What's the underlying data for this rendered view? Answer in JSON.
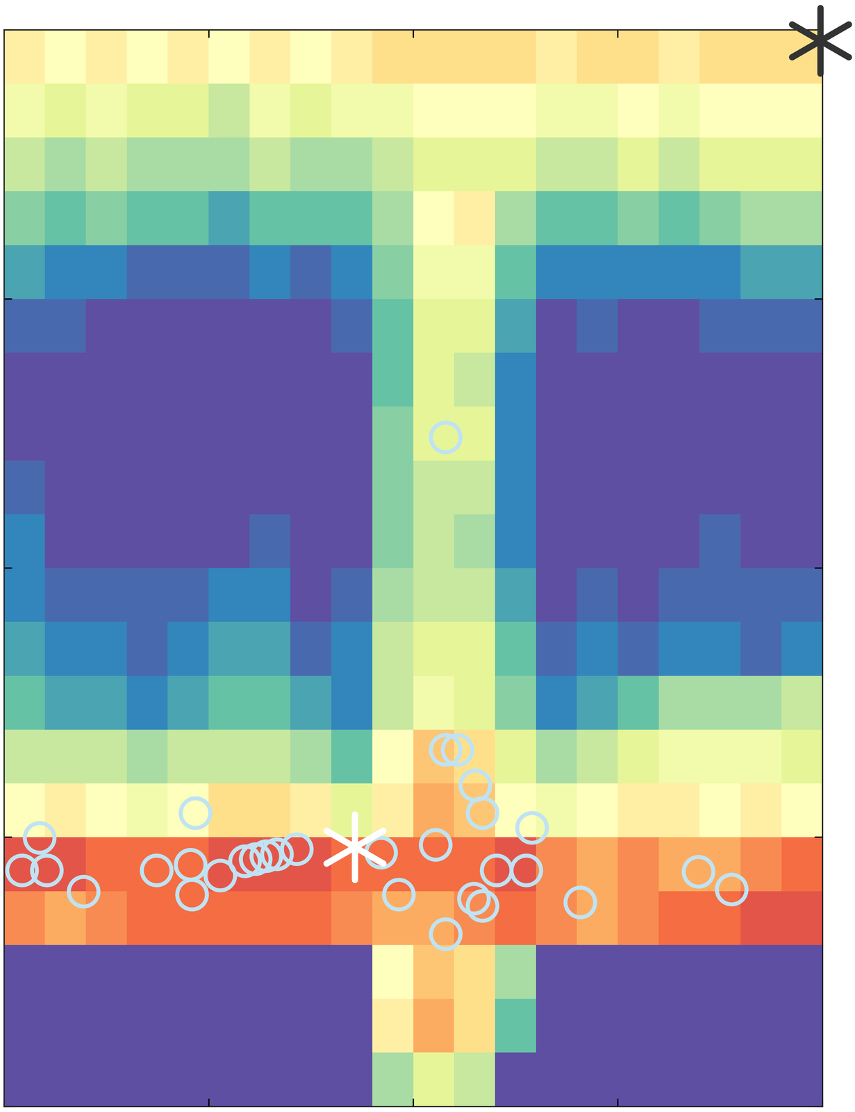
{
  "chart_data": {
    "type": "heatmap",
    "xlim": [
      0,
      4
    ],
    "ylim": [
      0,
      4
    ],
    "xticks": [
      0,
      1,
      2,
      3,
      4
    ],
    "yticks": [
      0,
      1,
      2,
      3,
      4
    ],
    "tick_labels": false,
    "color_range": [
      0,
      1
    ],
    "cells": [
      [
        0.55,
        0.5,
        0.55,
        0.5,
        0.55,
        0.5,
        0.55,
        0.5,
        0.55,
        0.6,
        0.6,
        0.6,
        0.6,
        0.55,
        0.6,
        0.6,
        0.55,
        0.6,
        0.6,
        0.6
      ],
      [
        0.45,
        0.4,
        0.45,
        0.4,
        0.4,
        0.35,
        0.45,
        0.4,
        0.45,
        0.45,
        0.5,
        0.5,
        0.5,
        0.45,
        0.45,
        0.5,
        0.45,
        0.5,
        0.5,
        0.5
      ],
      [
        0.35,
        0.3,
        0.35,
        0.3,
        0.3,
        0.3,
        0.35,
        0.3,
        0.3,
        0.35,
        0.4,
        0.4,
        0.4,
        0.35,
        0.35,
        0.4,
        0.35,
        0.4,
        0.4,
        0.4
      ],
      [
        0.25,
        0.2,
        0.25,
        0.2,
        0.2,
        0.15,
        0.2,
        0.2,
        0.2,
        0.3,
        0.5,
        0.55,
        0.3,
        0.2,
        0.2,
        0.25,
        0.2,
        0.25,
        0.3,
        0.3
      ],
      [
        0.15,
        0.1,
        0.1,
        0.05,
        0.05,
        0.05,
        0.1,
        0.05,
        0.1,
        0.25,
        0.45,
        0.45,
        0.2,
        0.1,
        0.1,
        0.1,
        0.1,
        0.1,
        0.15,
        0.15
      ],
      [
        0.05,
        0.05,
        0,
        0,
        0,
        0,
        0,
        0,
        0.05,
        0.2,
        0.4,
        0.4,
        0.15,
        0,
        0.05,
        0,
        0,
        0.05,
        0.05,
        0.05
      ],
      [
        0,
        0,
        0,
        0,
        0,
        0,
        0,
        0,
        0,
        0.2,
        0.4,
        0.35,
        0.1,
        0,
        0,
        0,
        0,
        0,
        0,
        0
      ],
      [
        0,
        0,
        0,
        0,
        0,
        0,
        0,
        0,
        0,
        0.25,
        0.4,
        0.4,
        0.1,
        0,
        0,
        0,
        0,
        0,
        0,
        0
      ],
      [
        0.05,
        0,
        0,
        0,
        0,
        0,
        0,
        0,
        0,
        0.25,
        0.35,
        0.35,
        0.1,
        0,
        0,
        0,
        0,
        0,
        0,
        0
      ],
      [
        0.1,
        0,
        0,
        0,
        0,
        0,
        0.05,
        0,
        0,
        0.25,
        0.35,
        0.3,
        0.1,
        0,
        0,
        0,
        0,
        0.05,
        0,
        0
      ],
      [
        0.1,
        0.05,
        0.05,
        0.05,
        0.05,
        0.1,
        0.1,
        0,
        0.05,
        0.3,
        0.35,
        0.35,
        0.15,
        0,
        0.05,
        0,
        0.05,
        0.05,
        0.05,
        0.05
      ],
      [
        0.15,
        0.1,
        0.1,
        0.05,
        0.1,
        0.15,
        0.15,
        0.05,
        0.1,
        0.35,
        0.4,
        0.4,
        0.2,
        0.05,
        0.1,
        0.05,
        0.1,
        0.1,
        0.05,
        0.1
      ],
      [
        0.2,
        0.15,
        0.15,
        0.1,
        0.15,
        0.2,
        0.2,
        0.15,
        0.1,
        0.35,
        0.45,
        0.4,
        0.25,
        0.1,
        0.15,
        0.2,
        0.3,
        0.3,
        0.3,
        0.35
      ],
      [
        0.35,
        0.35,
        0.35,
        0.3,
        0.35,
        0.35,
        0.35,
        0.3,
        0.2,
        0.5,
        0.65,
        0.6,
        0.4,
        0.3,
        0.35,
        0.4,
        0.45,
        0.45,
        0.45,
        0.4
      ],
      [
        0.5,
        0.55,
        0.5,
        0.45,
        0.5,
        0.6,
        0.6,
        0.55,
        0.4,
        0.55,
        0.7,
        0.65,
        0.5,
        0.45,
        0.5,
        0.55,
        0.55,
        0.5,
        0.55,
        0.5
      ],
      [
        0.85,
        0.85,
        0.8,
        0.8,
        0.8,
        0.85,
        0.85,
        0.85,
        0.8,
        0.8,
        0.8,
        0.8,
        0.85,
        0.75,
        0.7,
        0.75,
        0.7,
        0.7,
        0.75,
        0.8
      ],
      [
        0.75,
        0.7,
        0.75,
        0.8,
        0.8,
        0.8,
        0.8,
        0.8,
        0.75,
        0.7,
        0.7,
        0.75,
        0.8,
        0.75,
        0.7,
        0.75,
        0.8,
        0.8,
        0.85,
        0.85
      ],
      [
        0,
        0,
        0,
        0,
        0,
        0,
        0,
        0,
        0,
        0.5,
        0.65,
        0.6,
        0.3,
        0,
        0,
        0,
        0,
        0,
        0,
        0
      ],
      [
        0,
        0,
        0,
        0,
        0,
        0,
        0,
        0,
        0,
        0.55,
        0.7,
        0.6,
        0.2,
        0,
        0,
        0,
        0,
        0,
        0,
        0
      ],
      [
        0,
        0,
        0,
        0,
        0,
        0,
        0,
        0,
        0,
        0.3,
        0.4,
        0.35,
        0,
        0,
        0,
        0,
        0,
        0,
        0,
        0
      ]
    ],
    "series": [
      {
        "type": "scatter",
        "marker": "circle",
        "color": "#bfe3f3",
        "x": [
          2.158,
          2.158,
          2.216,
          2.303,
          2.338,
          2.58,
          2.109,
          0.935,
          0.173,
          0.087,
          0.208,
          0.388,
          0.745,
          0.911,
          0.918,
          1.056,
          1.177,
          1.229,
          1.281,
          1.333,
          1.43,
          1.842,
          1.929,
          2.158,
          2.296,
          2.338,
          2.407,
          2.552,
          2.816,
          3.394,
          3.556
        ],
        "y": [
          2.486,
          1.325,
          1.325,
          1.193,
          1.09,
          1.035,
          0.972,
          1.09,
          0.998,
          0.877,
          0.877,
          0.798,
          0.877,
          0.898,
          0.787,
          0.858,
          0.911,
          0.919,
          0.93,
          0.937,
          0.956,
          0.943,
          0.787,
          0.64,
          0.772,
          0.745,
          0.877,
          0.877,
          0.758,
          0.872,
          0.806
        ]
      },
      {
        "type": "scatter",
        "marker": "asterisk",
        "color": "#ffffff",
        "x": [
          1.714
        ],
        "y": [
          0.964
        ]
      },
      {
        "type": "scatter",
        "marker": "asterisk",
        "color": "#333333",
        "x": [
          3.99
        ],
        "y": [
          3.96
        ]
      }
    ]
  }
}
